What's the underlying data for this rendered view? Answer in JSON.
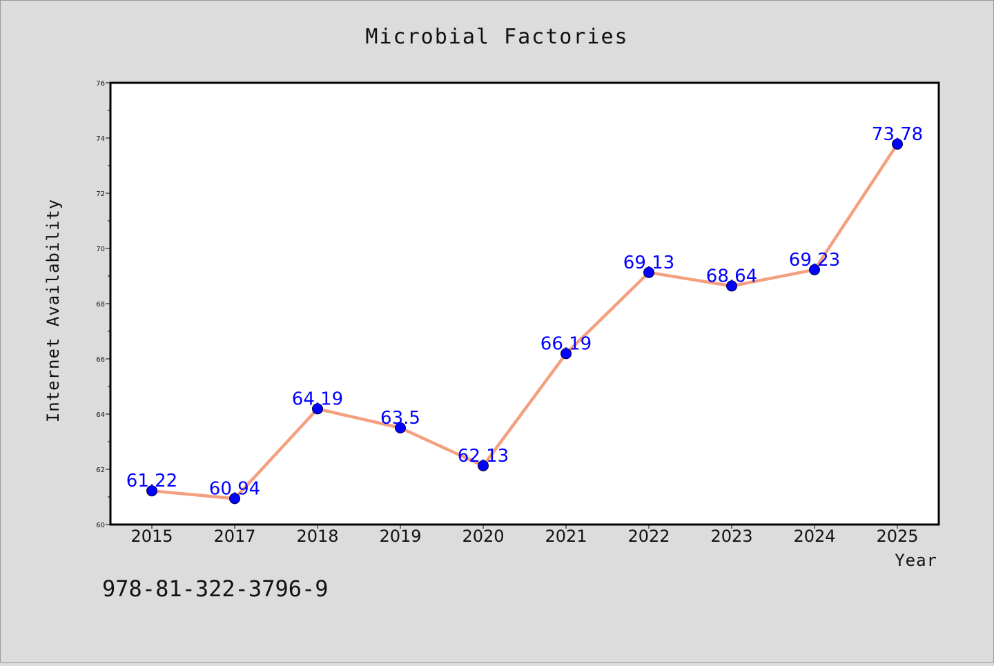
{
  "chart_data": {
    "type": "line",
    "title": "Microbial Factories",
    "xlabel": "Year",
    "ylabel": "Internet Availability",
    "categories": [
      "2015",
      "2017",
      "2018",
      "2019",
      "2020",
      "2021",
      "2022",
      "2023",
      "2024",
      "2025"
    ],
    "series": [
      {
        "values": [
          61.22,
          60.94,
          64.19,
          63.5,
          62.13,
          66.19,
          69.13,
          68.64,
          69.23,
          73.78
        ],
        "labels": [
          "61.22",
          "60.94",
          "64.19",
          "63.5",
          "62.13",
          "66.19",
          "69.13",
          "68.64",
          "69.23",
          "73.78"
        ]
      }
    ],
    "ylim": [
      60,
      76
    ],
    "yticks": [
      "60",
      "62",
      "64",
      "66",
      "68",
      "70",
      "72",
      "74",
      "76"
    ],
    "grid": false,
    "legend": "none",
    "colors": {
      "line": "#f4a07f",
      "marker": "#0000ff",
      "data_label": "#0000ff",
      "background": "#dcdcdc",
      "plot_background": "#ffffff"
    }
  },
  "footer": {
    "isbn": "978-81-322-3796-9"
  }
}
